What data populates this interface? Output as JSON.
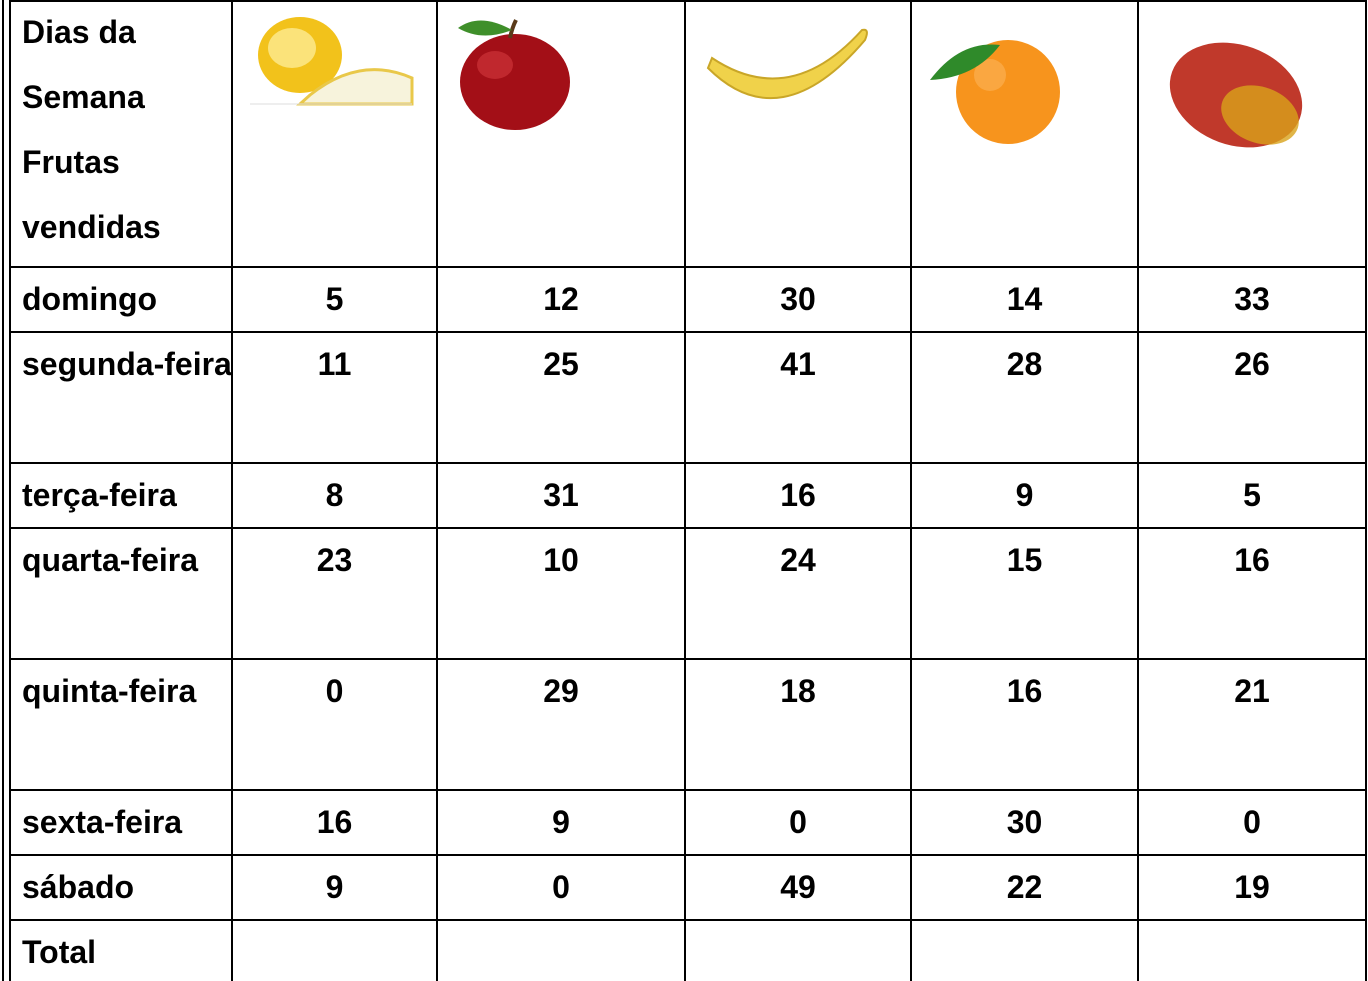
{
  "table": {
    "header": "Dias da Semana Frutas vendidas",
    "rows": [
      [
        "domingo",
        5,
        12,
        30,
        14,
        33
      ],
      [
        "segunda-feira",
        11,
        25,
        41,
        28,
        26
      ],
      [
        "terça-feira",
        8,
        31,
        16,
        9,
        5
      ],
      [
        "quarta-feira",
        23,
        10,
        24,
        15,
        16
      ],
      [
        "quinta-feira",
        0,
        29,
        18,
        16,
        21
      ],
      [
        "sexta-feira",
        16,
        9,
        0,
        30,
        0
      ],
      [
        "sábado",
        9,
        0,
        49,
        22,
        19
      ]
    ],
    "total": "Total"
  }
}
